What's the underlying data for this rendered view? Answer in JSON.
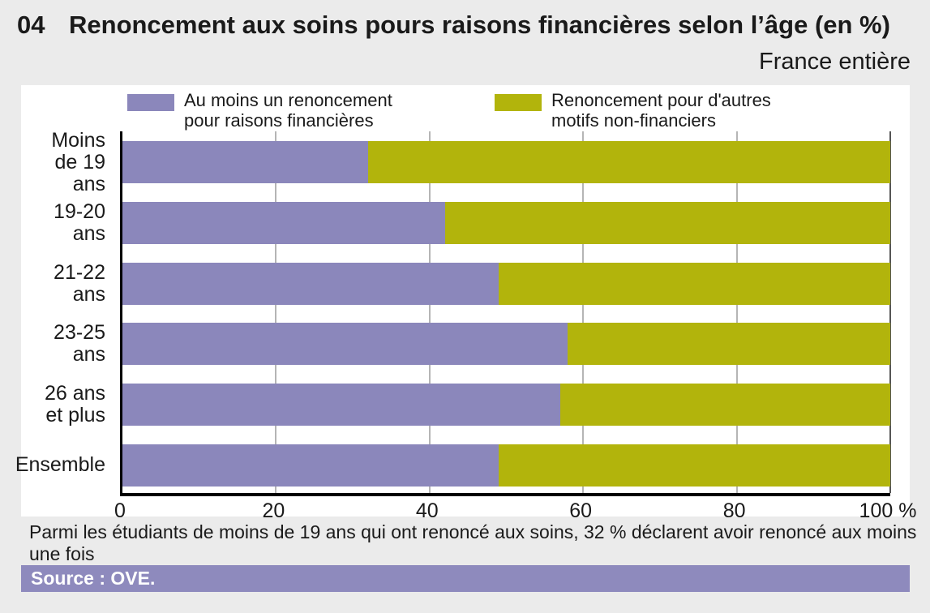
{
  "header": {
    "number": "04",
    "title": "Renoncement aux soins pours raisons financières selon l’âge (en %)",
    "subtitle": "France entière"
  },
  "legend": {
    "items": [
      {
        "name": "financial-renunciation",
        "line1": "Au moins un renoncement",
        "line2": "pour raisons financières",
        "color": "#8b87bb"
      },
      {
        "name": "non-financial-renunciation",
        "line1": "Renoncement pour d'autres",
        "line2": "motifs non-financiers",
        "color": "#b2b40c"
      }
    ]
  },
  "chart_data": {
    "type": "bar",
    "orientation": "horizontal",
    "stacked": true,
    "title": "Renoncement aux soins pours raisons financières selon l’âge (en %)",
    "subtitle": "France entière",
    "categories": [
      "Moins de 19 ans",
      "19-20 ans",
      "21-22 ans",
      "23-25 ans",
      "26 ans et plus",
      "Ensemble"
    ],
    "category_display": [
      [
        "Moins",
        "de 19 ans"
      ],
      [
        "19-20 ans"
      ],
      [
        "21-22 ans"
      ],
      [
        "23-25 ans"
      ],
      [
        "26 ans",
        "et plus"
      ],
      [
        "Ensemble"
      ]
    ],
    "series": [
      {
        "name": "Au moins un renoncement pour raisons financières",
        "color": "#8b87bb",
        "values": [
          32,
          42,
          49,
          58,
          57,
          49
        ]
      },
      {
        "name": "Renoncement pour d'autres motifs non-financiers",
        "color": "#b2b40c",
        "values": [
          68,
          58,
          51,
          42,
          43,
          51
        ]
      }
    ],
    "xlabel": "",
    "ylabel": "",
    "xlim": [
      0,
      100
    ],
    "x_ticks": [
      {
        "pos": 0,
        "label": "0"
      },
      {
        "pos": 20,
        "label": "20"
      },
      {
        "pos": 40,
        "label": "40"
      },
      {
        "pos": 60,
        "label": "60"
      },
      {
        "pos": 80,
        "label": "80"
      },
      {
        "pos": 100,
        "label": "100 %"
      }
    ],
    "grid": true,
    "legend_position": "top"
  },
  "note": {
    "line1": "Parmi les étudiants de moins de 19 ans qui ont renoncé aux soins, 32 % déclarent avoir renoncé aux moins une fois",
    "line2": "pour raisons financières."
  },
  "source": {
    "label": "Source : OVE."
  }
}
